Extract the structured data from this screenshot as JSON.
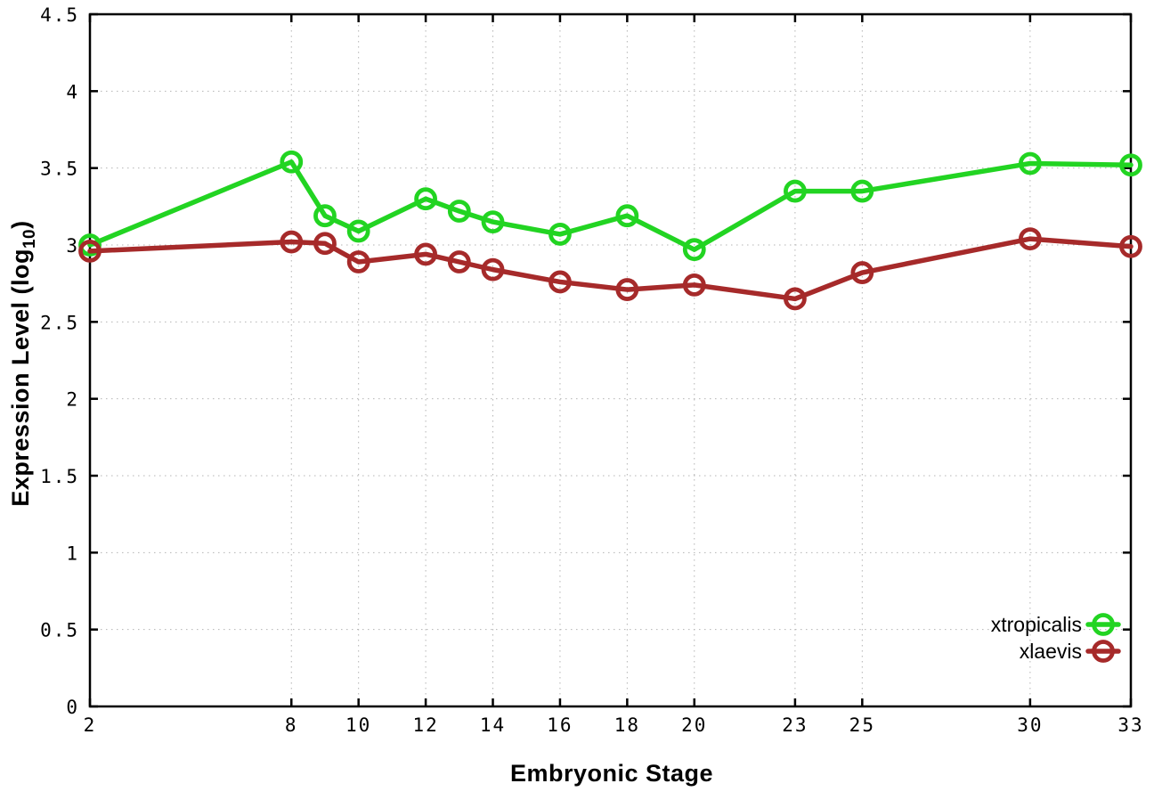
{
  "page": {
    "background": "#ffffff"
  },
  "chart_data": {
    "type": "line",
    "title": "",
    "xlabel": "Embryonic Stage",
    "ylabel": {
      "prefix": "Expression Level (log",
      "subscript": "10",
      "suffix": ")"
    },
    "x": [
      2,
      8,
      9,
      10,
      12,
      13,
      14,
      16,
      18,
      20,
      23,
      25,
      30,
      33
    ],
    "series": [
      {
        "name": "xtropicalis",
        "color": "#22d422",
        "values": [
          3.0,
          3.54,
          3.19,
          3.09,
          3.3,
          3.22,
          3.15,
          3.07,
          3.19,
          2.97,
          3.35,
          3.35,
          3.53,
          3.52
        ]
      },
      {
        "name": "xlaevis",
        "color": "#a62a2a",
        "values": [
          2.96,
          3.02,
          3.01,
          2.89,
          2.94,
          2.89,
          2.84,
          2.76,
          2.71,
          2.74,
          2.65,
          2.82,
          3.04,
          2.99
        ]
      }
    ],
    "xticks": [
      2,
      8,
      10,
      12,
      14,
      16,
      18,
      20,
      23,
      25,
      30,
      33
    ],
    "yticks": [
      0,
      0.5,
      1,
      1.5,
      2,
      2.5,
      3,
      3.5,
      4,
      4.5
    ],
    "xlim": [
      2,
      33
    ],
    "ylim": [
      0,
      4.5
    ],
    "grid": true,
    "grid_color": "#b4b4b4",
    "axis_color": "#000000",
    "marker": "open-circle",
    "legend": {
      "position": "bottom-right",
      "entries": [
        "xtropicalis",
        "xlaevis"
      ]
    }
  }
}
